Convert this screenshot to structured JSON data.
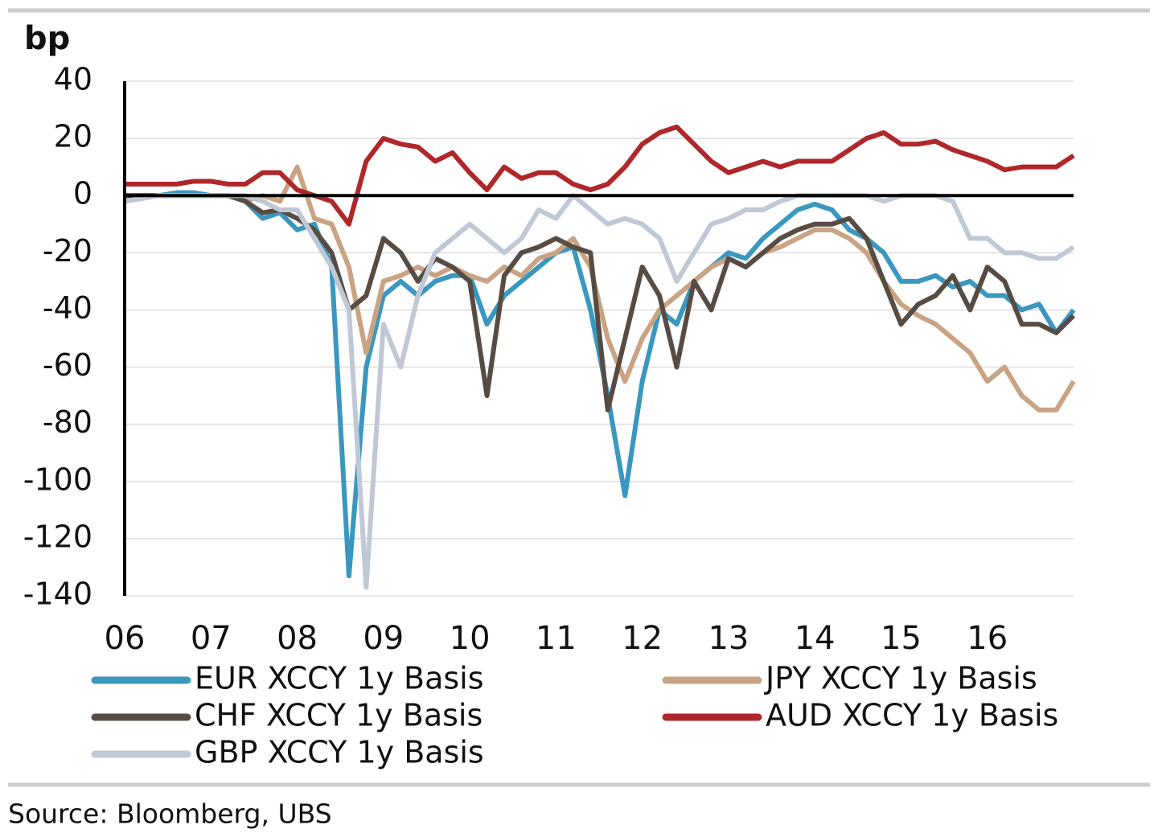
{
  "chart_data": {
    "type": "line",
    "ylabel": "bp",
    "source": "Source:  Bloomberg, UBS",
    "x": [
      2006.0,
      2006.2,
      2006.4,
      2006.6,
      2006.8,
      2007.0,
      2007.2,
      2007.4,
      2007.6,
      2007.8,
      2008.0,
      2008.2,
      2008.4,
      2008.6,
      2008.8,
      2009.0,
      2009.2,
      2009.4,
      2009.6,
      2009.8,
      2010.0,
      2010.2,
      2010.4,
      2010.6,
      2010.8,
      2011.0,
      2011.2,
      2011.4,
      2011.6,
      2011.8,
      2012.0,
      2012.2,
      2012.4,
      2012.6,
      2012.8,
      2013.0,
      2013.2,
      2013.4,
      2013.6,
      2013.8,
      2014.0,
      2014.2,
      2014.4,
      2014.6,
      2014.8,
      2015.0,
      2015.2,
      2015.4,
      2015.6,
      2015.8,
      2016.0,
      2016.2,
      2016.4,
      2016.6,
      2016.8,
      2017.0
    ],
    "series": [
      {
        "name": "EUR XCCY 1y Basis",
        "color": "#3a97bf",
        "values": [
          0,
          0,
          0,
          1,
          1,
          0,
          0,
          -2,
          -8,
          -6,
          -12,
          -10,
          -25,
          -133,
          -60,
          -35,
          -30,
          -35,
          -30,
          -28,
          -28,
          -45,
          -35,
          -30,
          -25,
          -20,
          -18,
          -40,
          -70,
          -105,
          -65,
          -40,
          -45,
          -30,
          -25,
          -20,
          -22,
          -15,
          -10,
          -5,
          -3,
          -5,
          -12,
          -15,
          -20,
          -30,
          -30,
          -28,
          -32,
          -30,
          -35,
          -35,
          -40,
          -38,
          -48,
          -40
        ]
      },
      {
        "name": "JPY XCCY 1y Basis",
        "color": "#c9a383",
        "values": [
          -2,
          -1,
          0,
          0,
          0,
          0,
          0,
          -2,
          0,
          -2,
          10,
          -8,
          -10,
          -25,
          -55,
          -30,
          -28,
          -25,
          -28,
          -25,
          -28,
          -30,
          -25,
          -28,
          -22,
          -20,
          -15,
          -25,
          -50,
          -65,
          -50,
          -40,
          -35,
          -30,
          -25,
          -22,
          -25,
          -20,
          -18,
          -15,
          -12,
          -12,
          -15,
          -20,
          -30,
          -38,
          -42,
          -45,
          -50,
          -55,
          -65,
          -60,
          -70,
          -75,
          -75,
          -65
        ]
      },
      {
        "name": "CHF XCCY 1y Basis",
        "color": "#574c44",
        "values": [
          0,
          0,
          0,
          0,
          0,
          0,
          0,
          -2,
          -6,
          -5,
          -8,
          -12,
          -20,
          -40,
          -35,
          -15,
          -20,
          -30,
          -22,
          -25,
          -30,
          -70,
          -28,
          -20,
          -18,
          -15,
          -18,
          -20,
          -75,
          -50,
          -25,
          -35,
          -60,
          -30,
          -40,
          -22,
          -25,
          -20,
          -15,
          -12,
          -10,
          -10,
          -8,
          -15,
          -30,
          -45,
          -38,
          -35,
          -28,
          -40,
          -25,
          -30,
          -45,
          -45,
          -48,
          -42
        ]
      },
      {
        "name": "AUD XCCY 1y Basis",
        "color": "#b0272a",
        "values": [
          4,
          4,
          4,
          4,
          5,
          5,
          4,
          4,
          8,
          8,
          2,
          0,
          -2,
          -10,
          12,
          20,
          18,
          17,
          12,
          15,
          8,
          2,
          10,
          6,
          8,
          8,
          4,
          2,
          4,
          10,
          18,
          22,
          24,
          18,
          12,
          8,
          10,
          12,
          10,
          12,
          12,
          12,
          16,
          20,
          22,
          18,
          18,
          19,
          16,
          14,
          12,
          9,
          10,
          10,
          10,
          14
        ]
      },
      {
        "name": "GBP XCCY 1y Basis",
        "color": "#c0c8d6",
        "values": [
          -2,
          -1,
          0,
          0,
          0,
          0,
          0,
          0,
          -2,
          -5,
          -5,
          -15,
          -25,
          -40,
          -137,
          -45,
          -60,
          -35,
          -20,
          -15,
          -10,
          -15,
          -20,
          -15,
          -5,
          -8,
          0,
          -5,
          -10,
          -8,
          -10,
          -15,
          -30,
          -20,
          -10,
          -8,
          -5,
          -5,
          -2,
          0,
          0,
          0,
          0,
          0,
          -2,
          0,
          0,
          0,
          -2,
          -15,
          -15,
          -20,
          -20,
          -22,
          -22,
          -18
        ]
      }
    ],
    "xlim": [
      2006,
      2017
    ],
    "xticks": [
      {
        "value": 2006,
        "label": "06"
      },
      {
        "value": 2007,
        "label": "07"
      },
      {
        "value": 2008,
        "label": "08"
      },
      {
        "value": 2009,
        "label": "09"
      },
      {
        "value": 2010,
        "label": "10"
      },
      {
        "value": 2011,
        "label": "11"
      },
      {
        "value": 2012,
        "label": "12"
      },
      {
        "value": 2013,
        "label": "13"
      },
      {
        "value": 2014,
        "label": "14"
      },
      {
        "value": 2015,
        "label": "15"
      },
      {
        "value": 2016,
        "label": "16"
      }
    ],
    "ylim": [
      -140,
      40
    ],
    "yticks": [
      40,
      20,
      0,
      -20,
      -40,
      -60,
      -80,
      -100,
      -120,
      -140
    ],
    "grid": true,
    "hline": 0
  }
}
